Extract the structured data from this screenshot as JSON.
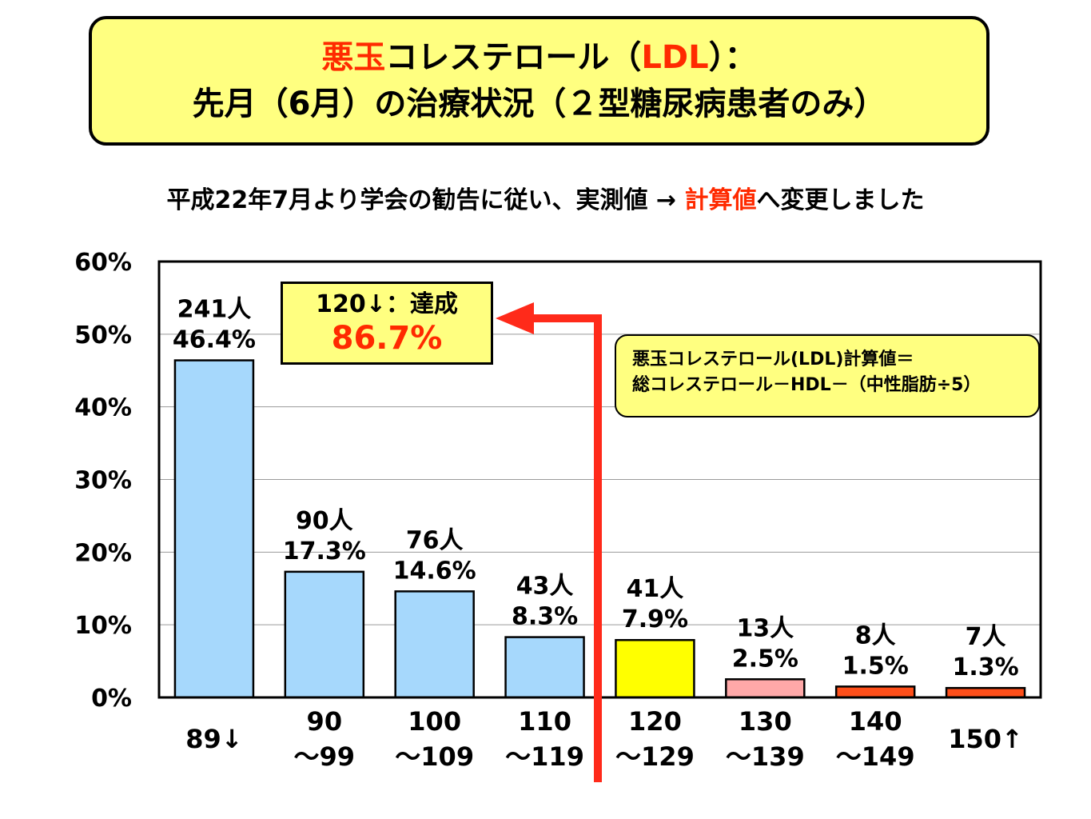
{
  "title": {
    "line1_red": "悪玉",
    "line1_a": "コレステロール（",
    "line1_red2": "LDL",
    "line1_b": "）：",
    "line2": "先月（6月）の治療状況（２型糖尿病患者のみ）"
  },
  "subtitle": {
    "before": "平成22年7月より学会の勧告に従い、実測値 → ",
    "red": "計算値",
    "after": "へ変更しました"
  },
  "callout": {
    "line1": "120↓：達成",
    "line2": "86.7%"
  },
  "formula": {
    "line1": "悪玉コレステロール(LDL)計算値＝",
    "line2": "総コレステロール－HDL－（中性脂肪÷5）"
  },
  "chart_data": {
    "type": "bar",
    "ylim": [
      0,
      60
    ],
    "yticks": [
      "0%",
      "10%",
      "20%",
      "30%",
      "40%",
      "50%",
      "60%"
    ],
    "grid": true,
    "categories": [
      [
        "89↓"
      ],
      [
        "90",
        "～99"
      ],
      [
        "100",
        "～109"
      ],
      [
        "110",
        "～119"
      ],
      [
        "120",
        "～129"
      ],
      [
        "130",
        "～139"
      ],
      [
        "140",
        "～149"
      ],
      [
        "150↑"
      ]
    ],
    "values": [
      46.4,
      17.3,
      14.6,
      8.3,
      7.9,
      2.5,
      1.5,
      1.3
    ],
    "counts": [
      "241人",
      "90人",
      "76人",
      "43人",
      "41人",
      "13人",
      "8人",
      "7人"
    ],
    "value_labels": [
      "46.4%",
      "17.3%",
      "14.6%",
      "8.3%",
      "7.9%",
      "2.5%",
      "1.5%",
      "1.3%"
    ],
    "colors": [
      "#a6d8fc",
      "#a6d8fc",
      "#a6d8fc",
      "#a6d8fc",
      "#ffff00",
      "#ffa8a8",
      "#ff4f1a",
      "#ff4f1a"
    ],
    "arrow_color": "#ff2a1a"
  }
}
